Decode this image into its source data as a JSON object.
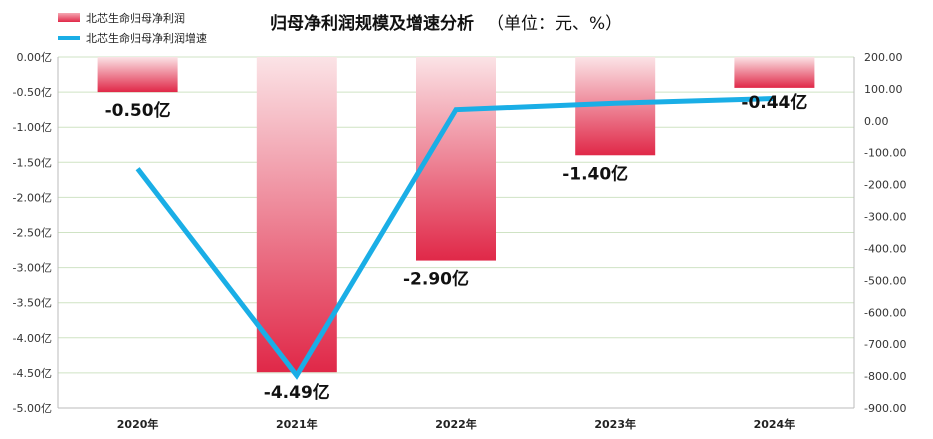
{
  "chart_data": {
    "type": "bar",
    "title": "归母净利润规模及增速分析",
    "title_unit": "（单位：元、%）",
    "categories": [
      "2020年",
      "2021年",
      "2022年",
      "2023年",
      "2024年"
    ],
    "series": [
      {
        "name": "北芯生命归母净利润",
        "type": "bar",
        "axis": "left",
        "values": [
          -0.5,
          -4.49,
          -2.9,
          -1.4,
          -0.44
        ],
        "labels": [
          "-0.50亿",
          "-4.49亿",
          "-2.90亿",
          "-1.40亿",
          "-0.44亿"
        ],
        "color": "#e8364f"
      },
      {
        "name": "北芯生命归母净利润增速",
        "type": "line",
        "axis": "right",
        "values": [
          -150,
          -798,
          35,
          55,
          70
        ],
        "color": "#1aaee6"
      }
    ],
    "y_left": {
      "ylim": [
        -5.0,
        0.0
      ],
      "ticks": [
        "0.00亿",
        "-0.50亿",
        "-1.00亿",
        "-1.50亿",
        "-2.00亿",
        "-2.50亿",
        "-3.00亿",
        "-3.50亿",
        "-4.00亿",
        "-4.50亿",
        "-5.00亿"
      ]
    },
    "y_right": {
      "ylim": [
        -900,
        200
      ],
      "ticks": [
        "200.00",
        "100.00",
        "0.00",
        "-100.00",
        "-200.00",
        "-300.00",
        "-400.00",
        "-500.00",
        "-600.00",
        "-700.00",
        "-800.00",
        "-900.00"
      ]
    },
    "grid": true,
    "legend": "top-left"
  }
}
